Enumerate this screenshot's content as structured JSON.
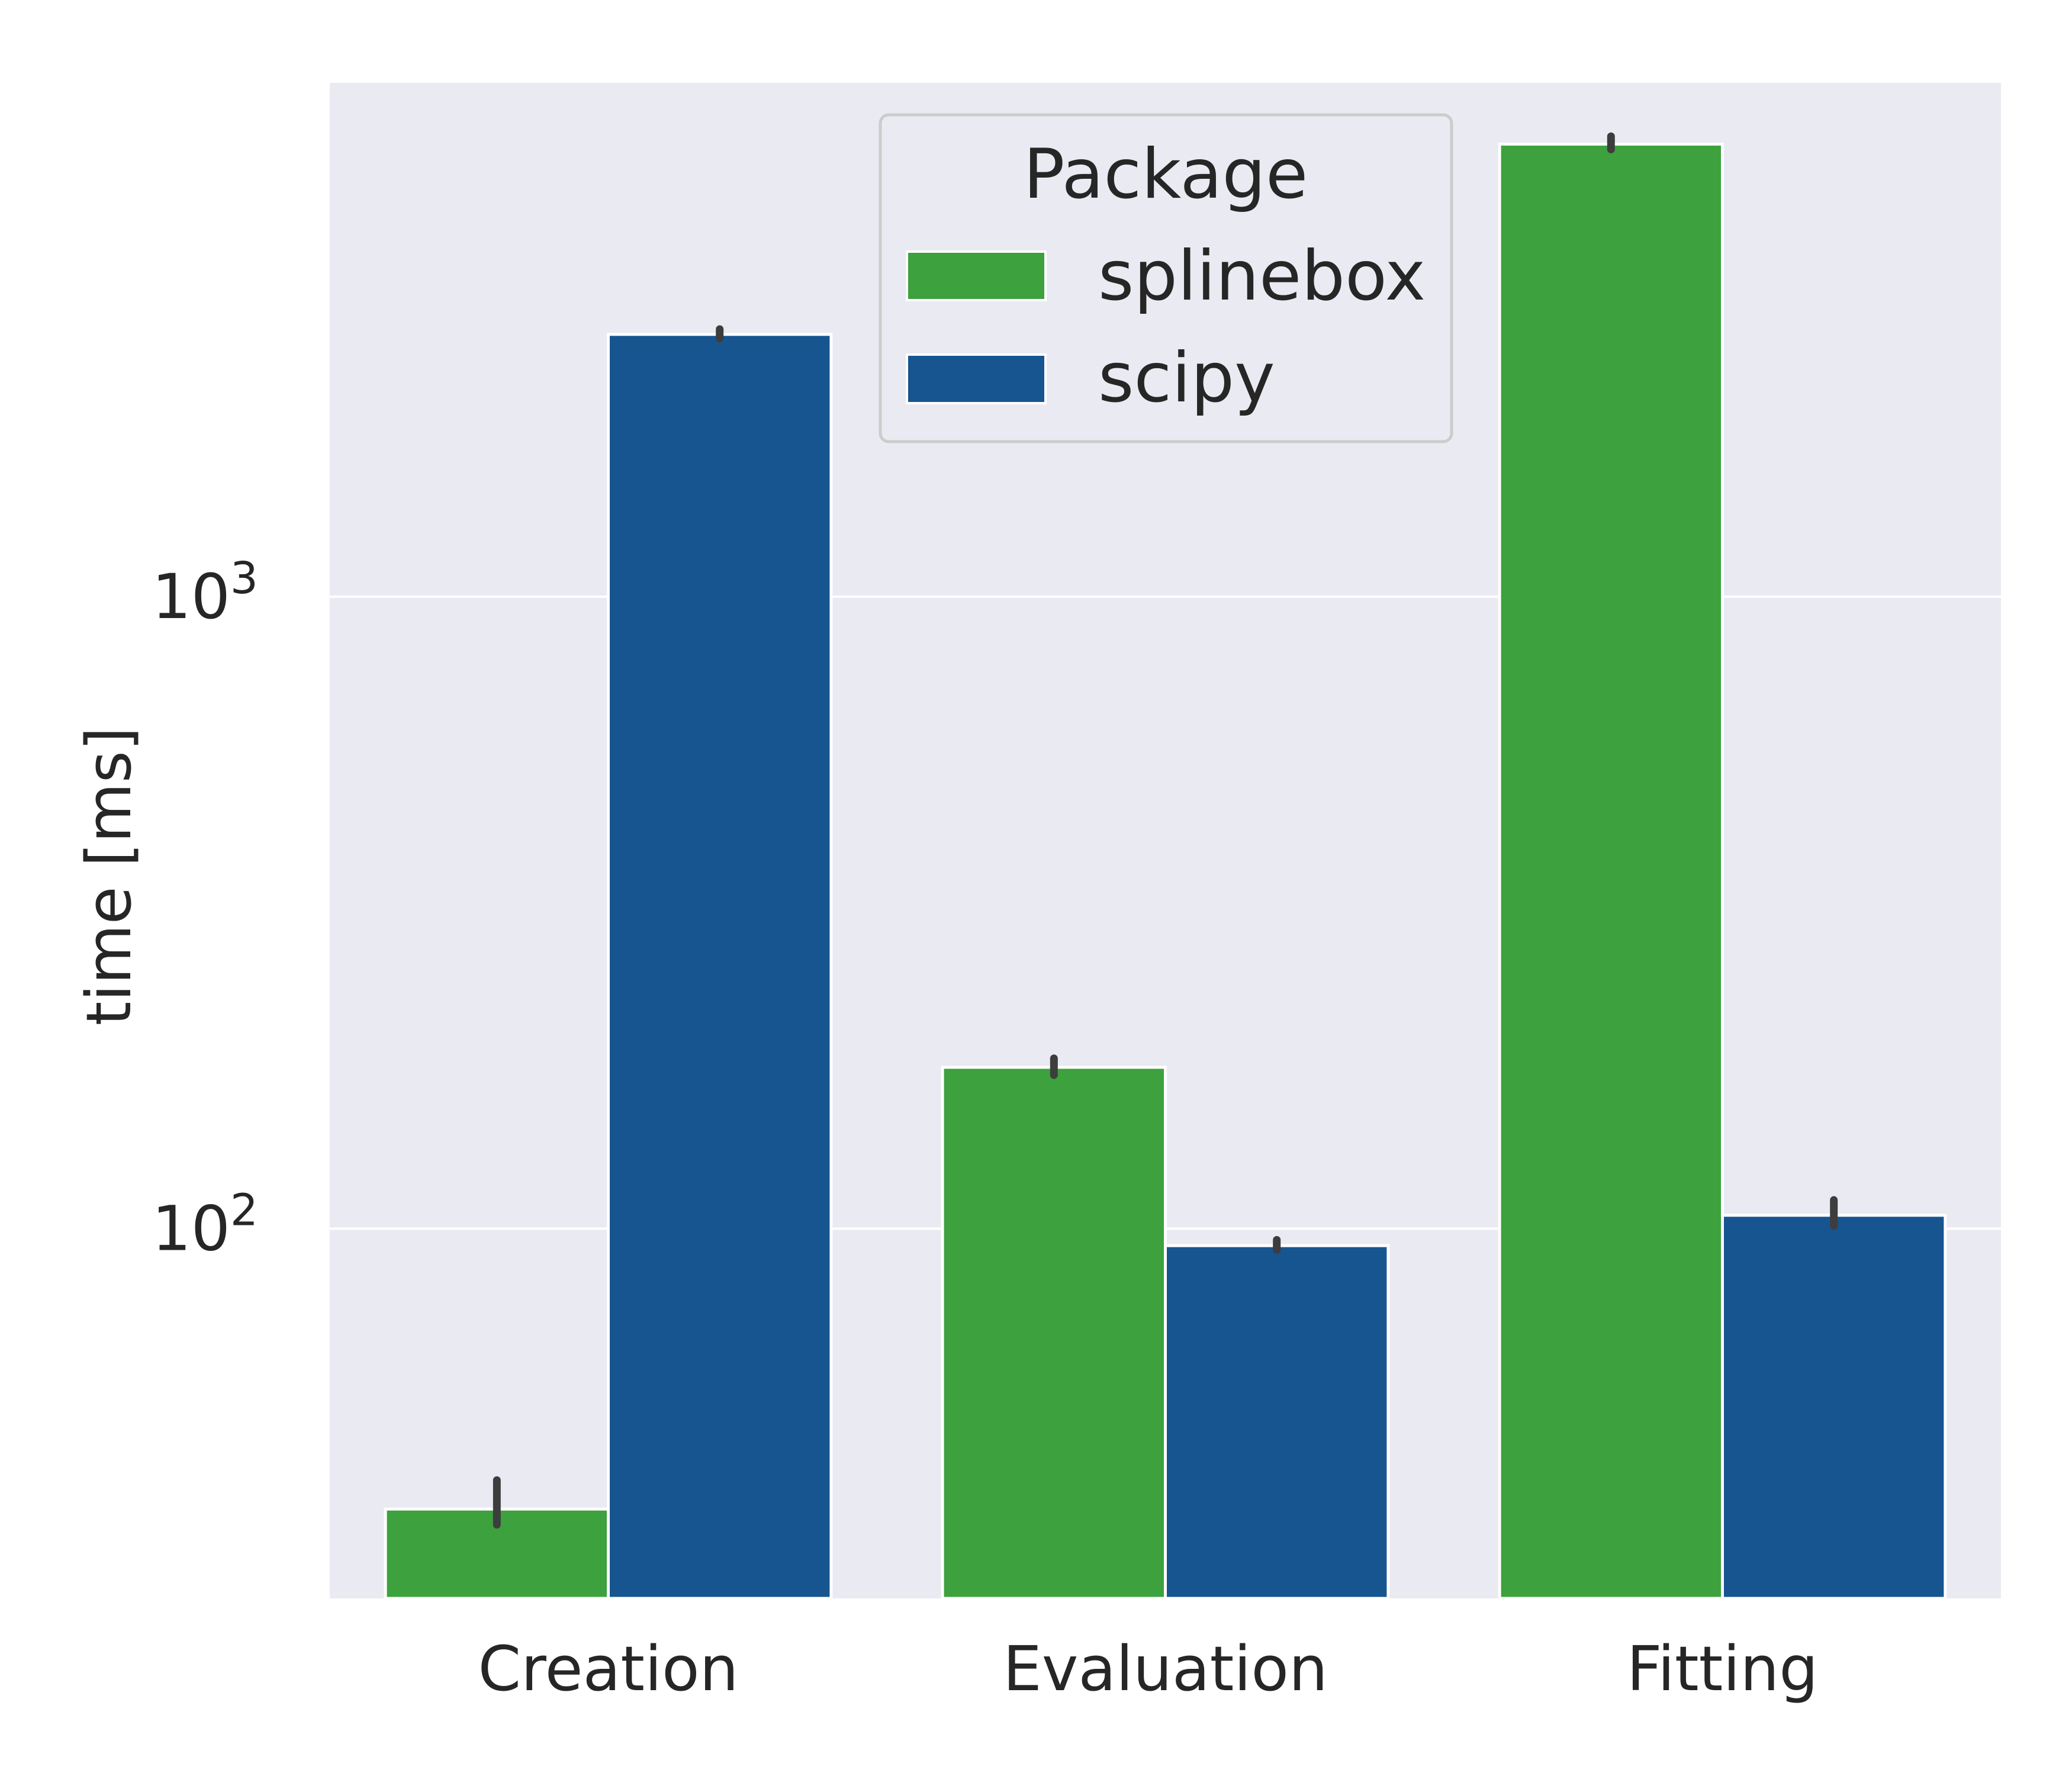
{
  "chart_data": {
    "type": "bar",
    "categories": [
      "Creation",
      "Evaluation",
      "Fitting"
    ],
    "series": [
      {
        "name": "splinebox",
        "color": "#3da13d",
        "values": [
          36,
          180,
          5200
        ],
        "err_low": [
          34,
          175,
          5100
        ],
        "err_high": [
          40,
          186,
          5350
        ]
      },
      {
        "name": "scipy",
        "color": "#175591",
        "values": [
          2600,
          94,
          105
        ],
        "err_low": [
          2560,
          92.5,
          101
        ],
        "err_high": [
          2650,
          96,
          111
        ]
      }
    ],
    "xlabel": "",
    "ylabel": "time [ms]",
    "yscale": "log",
    "ylim": [
      26,
      6500
    ],
    "ytick_base": "10",
    "yticks": [
      {
        "value": 100,
        "exponent": "2"
      },
      {
        "value": 1000,
        "exponent": "3"
      }
    ],
    "grid": true,
    "legend": {
      "title": "Package",
      "placement": "upper center"
    },
    "colors": {
      "background": "#eaeaf2",
      "grid": "#ffffff",
      "errorbar": "#3d3d3d"
    }
  }
}
